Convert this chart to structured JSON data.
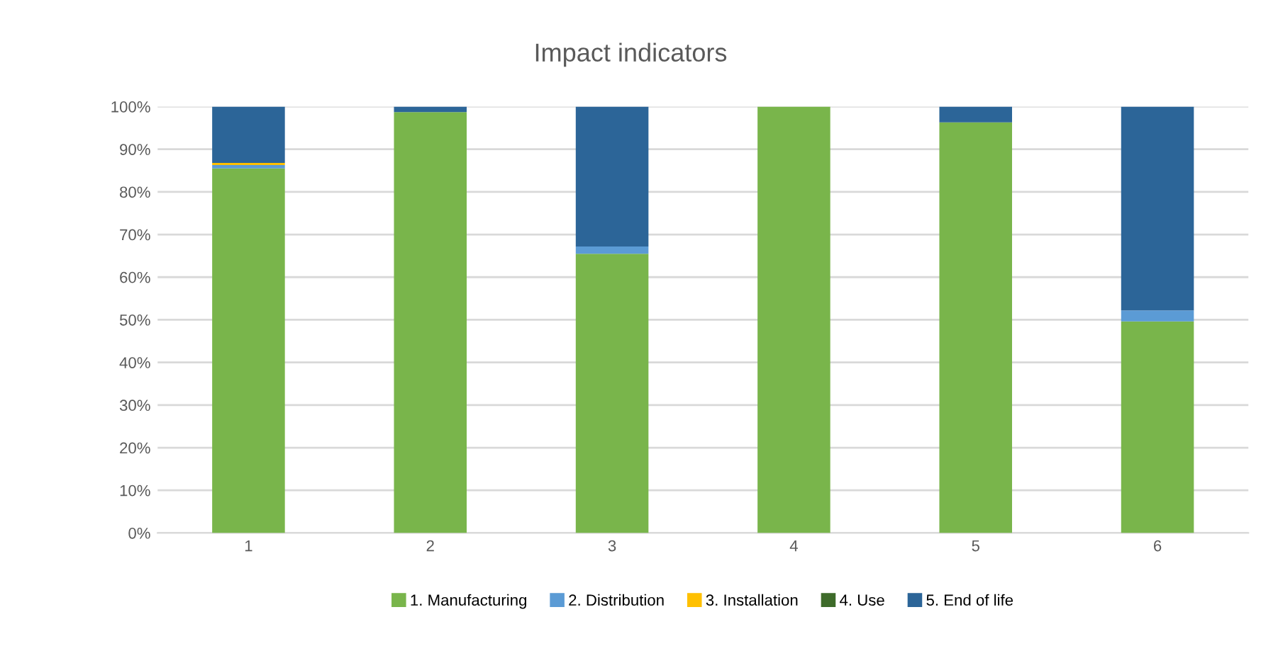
{
  "chart_data": {
    "type": "bar",
    "title": "Impact indicators",
    "stacked": true,
    "categories": [
      "1",
      "2",
      "3",
      "4",
      "5",
      "6"
    ],
    "series": [
      {
        "name": "1. Manufacturing",
        "color": "#79b54b",
        "values": [
          85.5,
          98.7,
          65.5,
          100,
          96.3,
          49.6
        ]
      },
      {
        "name": "2. Distribution",
        "color": "#5b9bd5",
        "values": [
          0.8,
          0,
          1.7,
          0,
          0,
          2.6
        ]
      },
      {
        "name": "3. Installation",
        "color": "#ffc000",
        "values": [
          0.5,
          0,
          0,
          0,
          0,
          0
        ]
      },
      {
        "name": "4. Use",
        "color": "#3e6b2a",
        "values": [
          0,
          0,
          0,
          0,
          0,
          0
        ]
      },
      {
        "name": "5. End of life",
        "color": "#2c6598",
        "values": [
          13.2,
          1.3,
          32.8,
          0,
          3.7,
          47.8
        ]
      }
    ],
    "ylim": [
      0,
      100
    ],
    "yticks": [
      {
        "value": 0,
        "label": "0%"
      },
      {
        "value": 10,
        "label": "10%"
      },
      {
        "value": 20,
        "label": "20%"
      },
      {
        "value": 30,
        "label": "30%"
      },
      {
        "value": 40,
        "label": "40%"
      },
      {
        "value": 50,
        "label": "50%"
      },
      {
        "value": 60,
        "label": "60%"
      },
      {
        "value": 70,
        "label": "70%"
      },
      {
        "value": 80,
        "label": "80%"
      },
      {
        "value": 90,
        "label": "90%"
      },
      {
        "value": 100,
        "label": "100%"
      }
    ],
    "grid": "y",
    "legend": "bottom"
  }
}
